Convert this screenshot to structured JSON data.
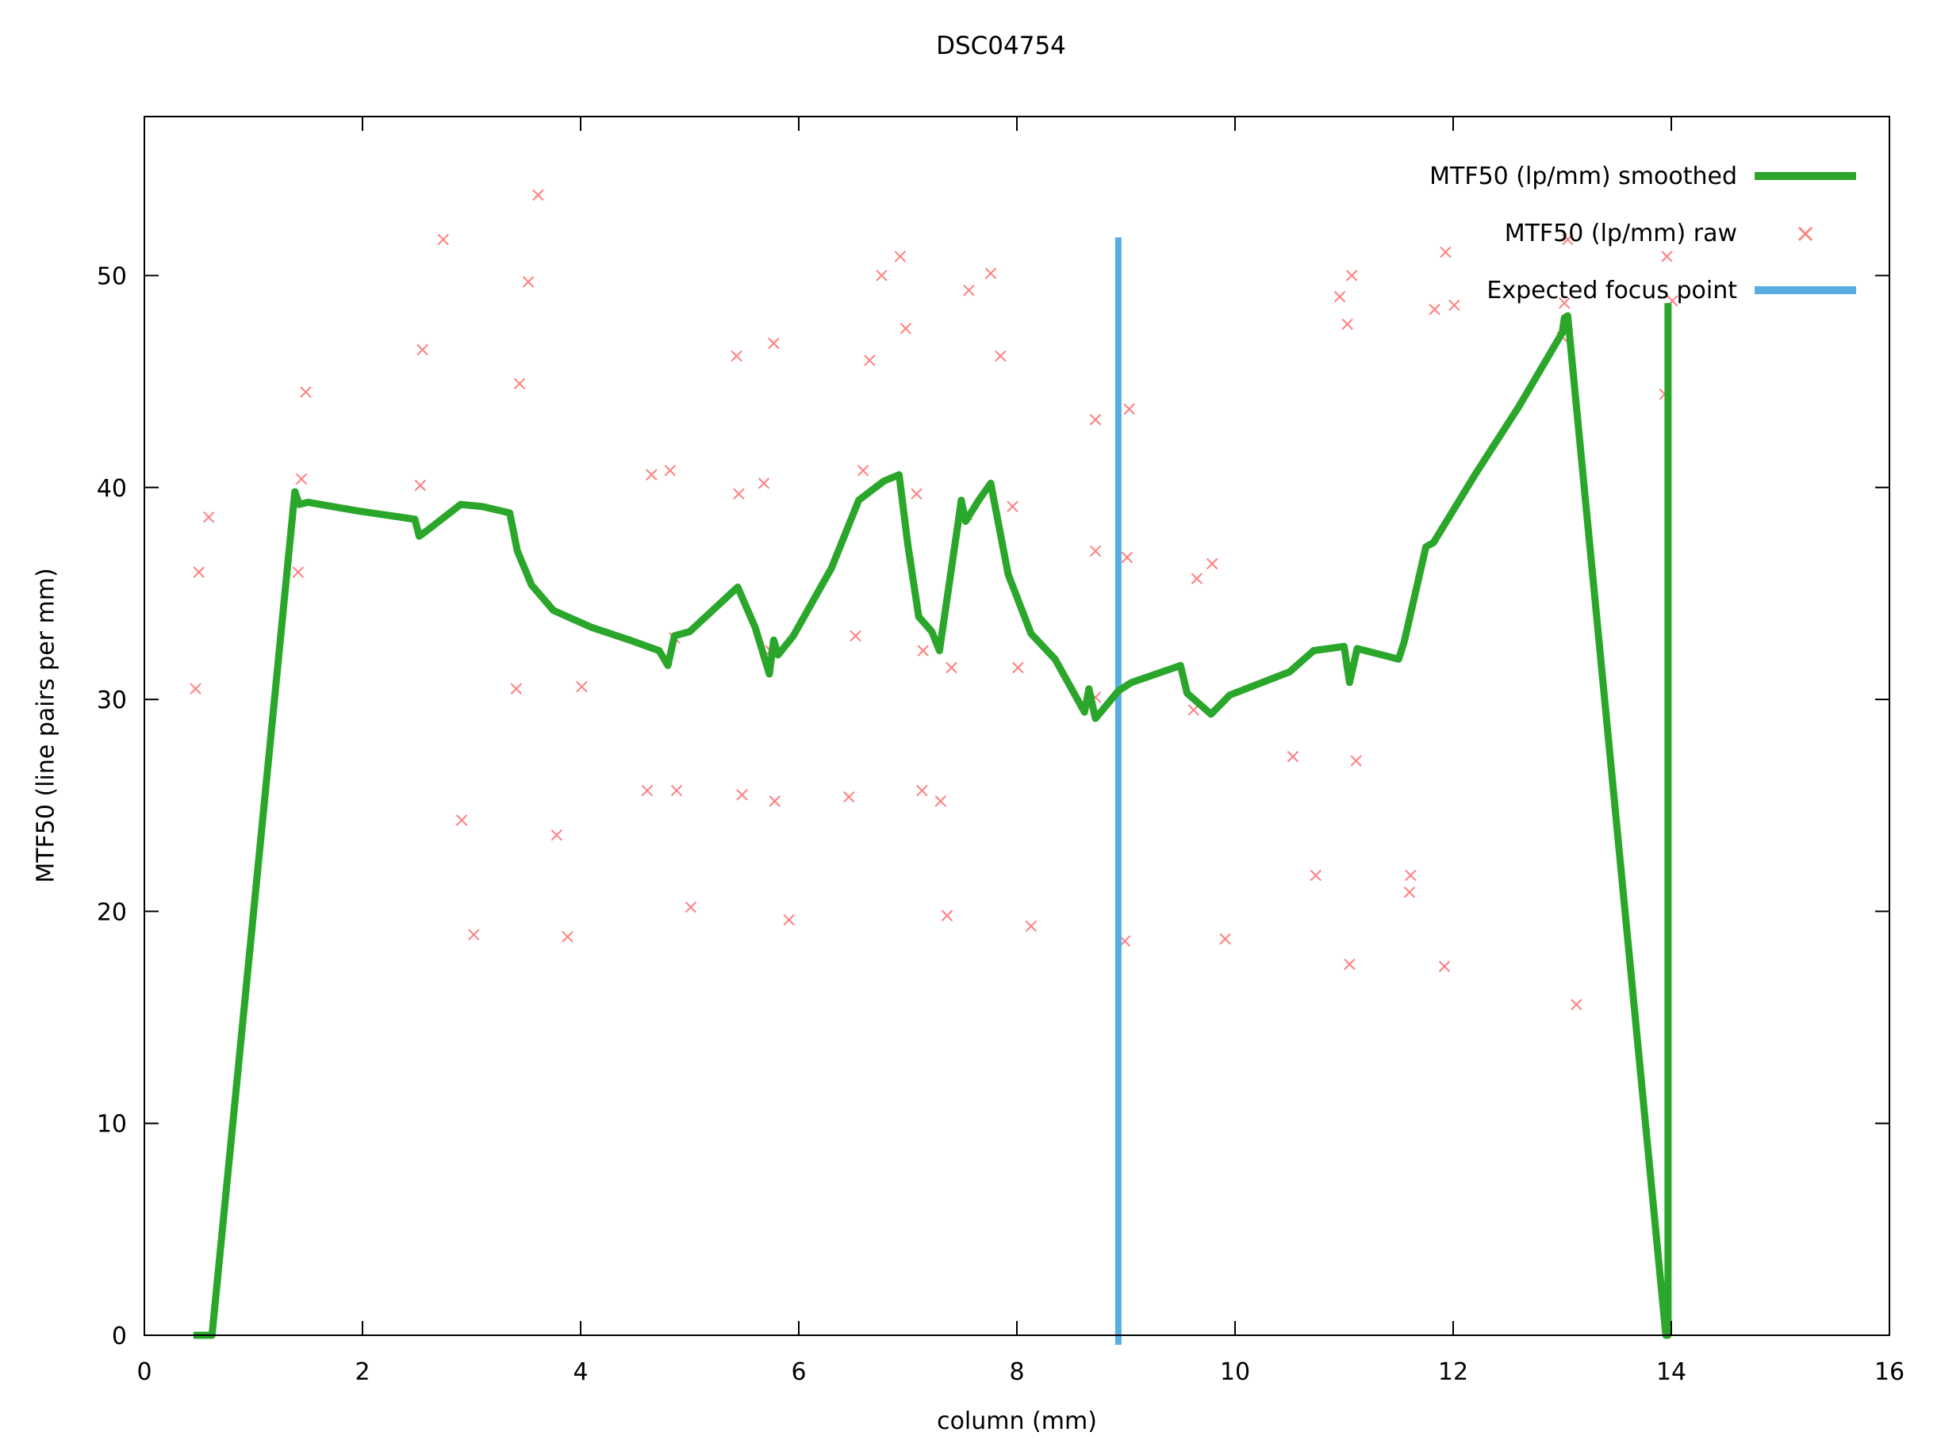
{
  "title": "DSC04754",
  "axes": {
    "x": {
      "label": "column (mm)",
      "min": 0,
      "max": 16,
      "ticks": [
        0,
        2,
        4,
        6,
        8,
        10,
        12,
        14,
        16
      ]
    },
    "y": {
      "label": "MTF50 (line pairs per mm)",
      "min": 0,
      "max": 57.5,
      "ticks": [
        0,
        10,
        20,
        30,
        40,
        50
      ]
    }
  },
  "legend": [
    {
      "label": "MTF50 (lp/mm) smoothed",
      "type": "line",
      "color": "#2aa62a"
    },
    {
      "label": "MTF50 (lp/mm) raw",
      "type": "cross",
      "color": "#ff7f7f"
    },
    {
      "label": "Expected focus point",
      "type": "line",
      "color": "#58ade2"
    }
  ],
  "colors": {
    "background": "#ffffff",
    "axis": "#000000",
    "smoothed": "#2aa62a",
    "raw": "#ff7f7f",
    "focus": "#58ade2"
  },
  "chart_data": {
    "type": "line",
    "title": "DSC04754",
    "xlabel": "column (mm)",
    "ylabel": "MTF50 (line pairs per mm)",
    "xlim": [
      0,
      16
    ],
    "ylim": [
      0,
      57.5
    ],
    "grid": false,
    "legend_position": "top-right-inside",
    "series": [
      {
        "name": "MTF50 (lp/mm) smoothed",
        "type": "line",
        "color": "#2aa62a",
        "linewidth": 9,
        "points": [
          [
            0.45,
            0
          ],
          [
            0.62,
            0
          ],
          [
            1.38,
            39.8
          ],
          [
            1.42,
            39.2
          ],
          [
            1.5,
            39.3
          ],
          [
            1.95,
            38.9
          ],
          [
            2.48,
            38.5
          ],
          [
            2.52,
            37.7
          ],
          [
            2.6,
            38.0
          ],
          [
            2.9,
            39.2
          ],
          [
            3.1,
            39.1
          ],
          [
            3.35,
            38.8
          ],
          [
            3.42,
            37.0
          ],
          [
            3.55,
            35.4
          ],
          [
            3.75,
            34.2
          ],
          [
            4.1,
            33.4
          ],
          [
            4.45,
            32.8
          ],
          [
            4.72,
            32.3
          ],
          [
            4.8,
            31.6
          ],
          [
            4.86,
            33.0
          ],
          [
            5.0,
            33.2
          ],
          [
            5.44,
            35.3
          ],
          [
            5.6,
            33.4
          ],
          [
            5.73,
            31.2
          ],
          [
            5.77,
            32.8
          ],
          [
            5.81,
            32.1
          ],
          [
            5.95,
            33.0
          ],
          [
            6.3,
            36.2
          ],
          [
            6.55,
            39.4
          ],
          [
            6.78,
            40.3
          ],
          [
            6.92,
            40.6
          ],
          [
            7.0,
            37.3
          ],
          [
            7.1,
            33.9
          ],
          [
            7.22,
            33.2
          ],
          [
            7.29,
            32.3
          ],
          [
            7.46,
            38.3
          ],
          [
            7.49,
            39.4
          ],
          [
            7.53,
            38.4
          ],
          [
            7.65,
            39.4
          ],
          [
            7.76,
            40.2
          ],
          [
            7.92,
            35.9
          ],
          [
            8.13,
            33.1
          ],
          [
            8.35,
            31.9
          ],
          [
            8.62,
            29.4
          ],
          [
            8.66,
            30.5
          ],
          [
            8.72,
            29.1
          ],
          [
            8.93,
            30.4
          ],
          [
            9.05,
            30.8
          ],
          [
            9.5,
            31.6
          ],
          [
            9.56,
            30.3
          ],
          [
            9.78,
            29.3
          ],
          [
            9.95,
            30.2
          ],
          [
            10.5,
            31.3
          ],
          [
            10.72,
            32.3
          ],
          [
            11.0,
            32.5
          ],
          [
            11.05,
            30.8
          ],
          [
            11.12,
            32.4
          ],
          [
            11.5,
            31.9
          ],
          [
            11.55,
            32.7
          ],
          [
            11.75,
            37.2
          ],
          [
            11.82,
            37.4
          ],
          [
            12.2,
            40.6
          ],
          [
            12.6,
            43.8
          ],
          [
            13.0,
            47.3
          ],
          [
            13.02,
            48.0
          ],
          [
            13.05,
            48.1
          ],
          [
            13.95,
            0
          ],
          [
            13.97,
            0
          ],
          [
            13.97,
            48.7
          ]
        ]
      },
      {
        "name": "MTF50 (lp/mm) raw",
        "type": "scatter",
        "marker": "x",
        "color": "#ff7f7f",
        "marker_size": 13,
        "points": [
          [
            0.47,
            30.5
          ],
          [
            0.5,
            36.0
          ],
          [
            0.59,
            38.6
          ],
          [
            1.41,
            36.0
          ],
          [
            1.44,
            40.4
          ],
          [
            1.48,
            44.5
          ],
          [
            2.53,
            40.1
          ],
          [
            2.55,
            46.5
          ],
          [
            2.74,
            51.7
          ],
          [
            2.91,
            24.3
          ],
          [
            3.02,
            18.9
          ],
          [
            3.41,
            30.5
          ],
          [
            3.44,
            44.9
          ],
          [
            3.52,
            49.7
          ],
          [
            3.61,
            53.8
          ],
          [
            3.78,
            23.6
          ],
          [
            3.88,
            18.8
          ],
          [
            4.01,
            30.6
          ],
          [
            4.61,
            25.7
          ],
          [
            4.65,
            40.6
          ],
          [
            4.82,
            40.8
          ],
          [
            4.86,
            32.9
          ],
          [
            4.88,
            25.7
          ],
          [
            5.01,
            20.2
          ],
          [
            5.43,
            46.2
          ],
          [
            5.45,
            39.7
          ],
          [
            5.48,
            25.5
          ],
          [
            5.68,
            40.2
          ],
          [
            5.74,
            32.3
          ],
          [
            5.77,
            46.8
          ],
          [
            5.78,
            25.2
          ],
          [
            5.91,
            19.6
          ],
          [
            6.46,
            25.4
          ],
          [
            6.52,
            33.0
          ],
          [
            6.59,
            40.8
          ],
          [
            6.65,
            46.0
          ],
          [
            6.76,
            50.0
          ],
          [
            6.93,
            50.9
          ],
          [
            6.98,
            47.5
          ],
          [
            7.08,
            39.7
          ],
          [
            7.13,
            25.7
          ],
          [
            7.14,
            32.3
          ],
          [
            7.3,
            25.2
          ],
          [
            7.36,
            19.8
          ],
          [
            7.4,
            31.5
          ],
          [
            7.54,
            38.7
          ],
          [
            7.56,
            49.3
          ],
          [
            7.76,
            50.1
          ],
          [
            7.85,
            46.2
          ],
          [
            7.96,
            39.1
          ],
          [
            8.01,
            31.5
          ],
          [
            8.13,
            19.3
          ],
          [
            8.72,
            43.2
          ],
          [
            8.72,
            37.0
          ],
          [
            8.72,
            30.1
          ],
          [
            8.99,
            18.6
          ],
          [
            9.01,
            36.7
          ],
          [
            9.03,
            43.7
          ],
          [
            9.62,
            29.5
          ],
          [
            9.65,
            35.7
          ],
          [
            9.79,
            36.4
          ],
          [
            9.91,
            18.7
          ],
          [
            10.53,
            27.3
          ],
          [
            10.74,
            21.7
          ],
          [
            10.96,
            49.0
          ],
          [
            11.03,
            47.7
          ],
          [
            11.05,
            17.5
          ],
          [
            11.07,
            50.0
          ],
          [
            11.11,
            27.1
          ],
          [
            11.6,
            20.9
          ],
          [
            11.61,
            21.7
          ],
          [
            11.83,
            48.4
          ],
          [
            11.92,
            17.4
          ],
          [
            11.93,
            51.1
          ],
          [
            12.01,
            48.6
          ],
          [
            13.0,
            47.1
          ],
          [
            13.02,
            48.7
          ],
          [
            13.05,
            51.7
          ],
          [
            13.13,
            15.6
          ],
          [
            13.94,
            44.4
          ],
          [
            13.96,
            50.9
          ],
          [
            14.01,
            48.8
          ]
        ]
      },
      {
        "name": "Expected focus point",
        "type": "vline",
        "color": "#58ade2",
        "linewidth": 8,
        "x": 8.93,
        "y0": 0,
        "y1": 51.8
      }
    ]
  }
}
